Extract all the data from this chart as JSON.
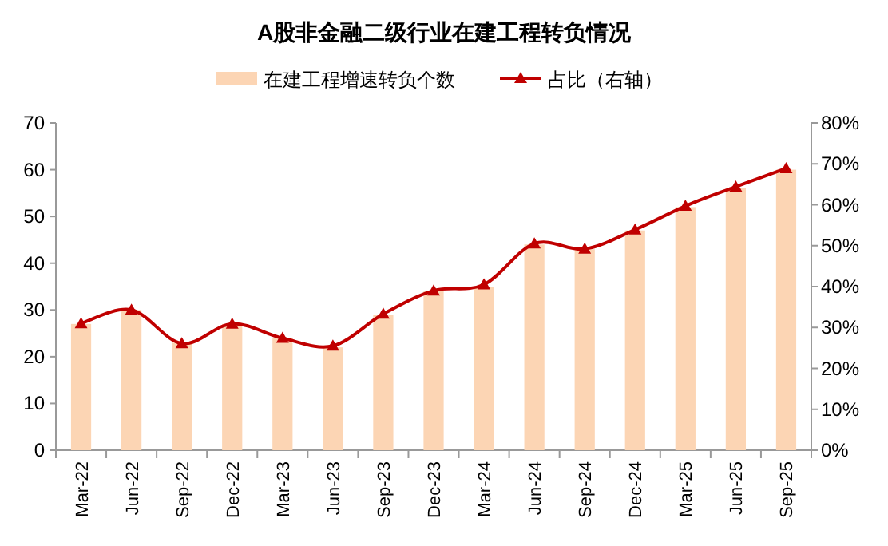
{
  "chart_data": {
    "type": "bar",
    "title": "A股非金融二级行业在建工程转负情况",
    "categories": [
      "Mar-22",
      "Jun-22",
      "Sep-22",
      "Dec-22",
      "Mar-23",
      "Jun-23",
      "Sep-23",
      "Dec-23",
      "Mar-24",
      "Jun-24",
      "Sep-24",
      "Dec-24",
      "Mar-25",
      "Jun-25",
      "Sep-25"
    ],
    "series": [
      {
        "name": "在建工程增速转负个数",
        "color": "#fcd5b4",
        "values": [
          27,
          30,
          23,
          27,
          24,
          22,
          29,
          34,
          35,
          44,
          43,
          47,
          52,
          56,
          60
        ]
      },
      {
        "name": "占比（右轴）",
        "type": "line",
        "axis": "y2",
        "color": "#c00000",
        "marker": "triangle",
        "values": [
          31,
          34.3,
          26.1,
          30.9,
          27.4,
          25.5,
          33.3,
          39,
          40.5,
          50.5,
          49.2,
          53.9,
          59.7,
          64.4,
          68.9
        ]
      }
    ],
    "ylim": [
      0,
      70
    ],
    "yticks": [
      0,
      10,
      20,
      30,
      40,
      50,
      60,
      70
    ],
    "y2lim": [
      0,
      80
    ],
    "y2ticks": [
      {
        "value": 0,
        "label": "0%"
      },
      {
        "value": 10,
        "label": "10%"
      },
      {
        "value": 20,
        "label": "20%"
      },
      {
        "value": 30,
        "label": "30%"
      },
      {
        "value": 40,
        "label": "40%"
      },
      {
        "value": 50,
        "label": "50%"
      },
      {
        "value": 60,
        "label": "60%"
      },
      {
        "value": 70,
        "label": "70%"
      },
      {
        "value": 80,
        "label": "80%"
      }
    ],
    "legend": "top",
    "grid": false
  }
}
